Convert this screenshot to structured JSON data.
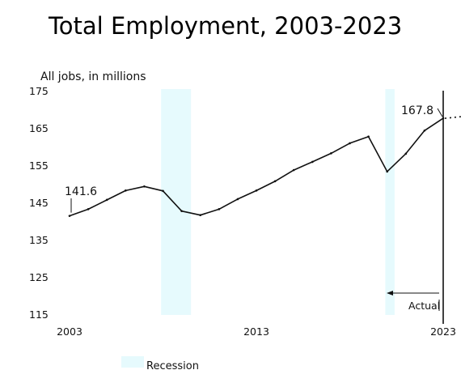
{
  "chart_data": {
    "type": "line",
    "title": "Total Employment, 2003-2023",
    "ylabel": "All jobs, in millions",
    "xlabel": "",
    "x_ticks": [
      "2003",
      "2013",
      "2023"
    ],
    "y_ticks": [
      "175",
      "165",
      "155",
      "145",
      "135",
      "125",
      "115"
    ],
    "ylim": [
      115,
      175
    ],
    "xlim": [
      2003,
      2023
    ],
    "x": [
      2003,
      2004,
      2005,
      2006,
      2007,
      2008,
      2009,
      2010,
      2011,
      2012,
      2013,
      2014,
      2015,
      2016,
      2017,
      2018,
      2019,
      2020,
      2021,
      2022,
      2023
    ],
    "series": [
      {
        "values": [
          141.6,
          143.4,
          145.9,
          148.4,
          149.5,
          148.3,
          142.9,
          141.8,
          143.4,
          146.1,
          148.4,
          150.9,
          153.9,
          156.1,
          158.4,
          161.1,
          162.9,
          153.5,
          158.3,
          164.5,
          167.8
        ]
      }
    ],
    "annotations": {
      "start_label": "141.6",
      "end_label": "167.8",
      "actual_label": "Actual"
    },
    "recessions": [
      [
        2007.9,
        2009.5
      ],
      [
        2019.9,
        2020.4
      ]
    ],
    "legend": {
      "recession_label": "Recession",
      "position": "bottom"
    },
    "grid": false,
    "colors": {
      "line": "#111111",
      "recession": "#e6fafd",
      "axis": "#111111"
    }
  }
}
